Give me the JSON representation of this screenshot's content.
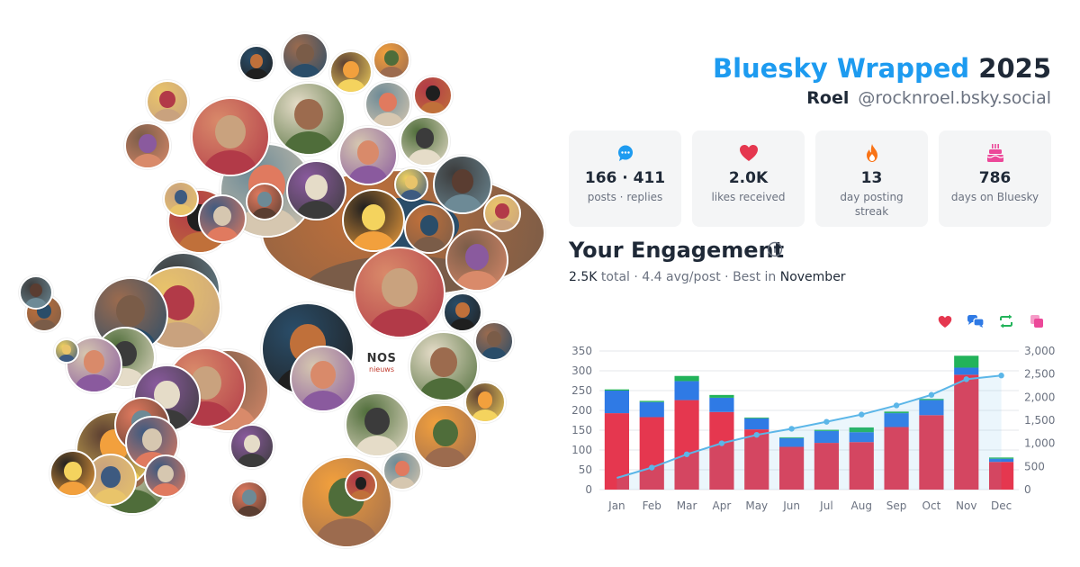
{
  "header": {
    "title_brand": "Bluesky Wrapped",
    "title_year": "2025",
    "display_name": "Roel",
    "handle": "@rocknroel.bsky.social"
  },
  "stats": [
    {
      "icon": "speech-bubble-icon",
      "color": "#1d9bf0",
      "value": "166 · 411",
      "label": "posts · replies"
    },
    {
      "icon": "heart-icon",
      "color": "#e5374f",
      "value": "2.0K",
      "label": "likes received"
    },
    {
      "icon": "flame-icon",
      "color": "#f97316",
      "value": "13",
      "label": "day posting streak"
    },
    {
      "icon": "cake-icon",
      "color": "#ec4899",
      "value": "786",
      "label": "days on Bluesky"
    }
  ],
  "engagement": {
    "title": "Your Engagement",
    "total": "2.5K",
    "total_label": "total",
    "avg": "4.4 avg/post",
    "best_prefix": "Best in",
    "best_month": "November"
  },
  "avatar_logo": {
    "line1": "NOS",
    "line2": "nieuws"
  },
  "legend": [
    {
      "icon": "heart-icon",
      "color": "#e5374f"
    },
    {
      "icon": "replies-icon",
      "color": "#2f7ae5"
    },
    {
      "icon": "repost-icon",
      "color": "#22b35a"
    },
    {
      "icon": "quote-icon",
      "color": "#ec4899"
    }
  ],
  "chart_data": {
    "type": "bar",
    "stacked": true,
    "categories": [
      "Jan",
      "Feb",
      "Mar",
      "Apr",
      "May",
      "Jun",
      "Jul",
      "Aug",
      "Sep",
      "Oct",
      "Nov",
      "Dec"
    ],
    "series": [
      {
        "color": "#e5374f",
        "values": [
          193,
          183,
          226,
          196,
          152,
          108,
          118,
          120,
          158,
          188,
          290,
          70
        ]
      },
      {
        "color": "#2f7ae5",
        "values": [
          57,
          38,
          48,
          36,
          28,
          22,
          30,
          25,
          35,
          38,
          18,
          8
        ]
      },
      {
        "color": "#22b35a",
        "values": [
          3,
          3,
          13,
          7,
          2,
          2,
          3,
          12,
          4,
          3,
          30,
          3
        ]
      },
      {
        "color": "#ec4899",
        "values": [
          0,
          0,
          0,
          0,
          0,
          0,
          0,
          0,
          0,
          0,
          0,
          0
        ]
      }
    ],
    "cumulative": {
      "color": "#5bb6e8",
      "axis": "right",
      "values": [
        253,
        477,
        764,
        1003,
        1185,
        1317,
        1468,
        1625,
        1822,
        2051,
        2389,
        2470
      ]
    },
    "ylim_left": [
      0,
      350
    ],
    "yticks_left": [
      "0",
      "50",
      "100",
      "150",
      "200",
      "250",
      "300",
      "350"
    ],
    "ylim_right": [
      0,
      3000
    ],
    "yticks_right": [
      "0",
      "500",
      "1,000",
      "1,500",
      "2,000",
      "2,500",
      "3,000"
    ],
    "grid": true
  },
  "avatar_palette": [
    "#c0703a",
    "#3b3b3b",
    "#e9c46a",
    "#7a5c48",
    "#d98a6a",
    "#2a4d69",
    "#9c6b4e",
    "#e5dcc8",
    "#5a3d31",
    "#f2a03d",
    "#6d8a96",
    "#b23a48",
    "#4f6d3a",
    "#d6c7b0",
    "#8a5a9e",
    "#e07a5f",
    "#3d5a80",
    "#c9a27e",
    "#1f1f1f",
    "#f4d35e"
  ]
}
